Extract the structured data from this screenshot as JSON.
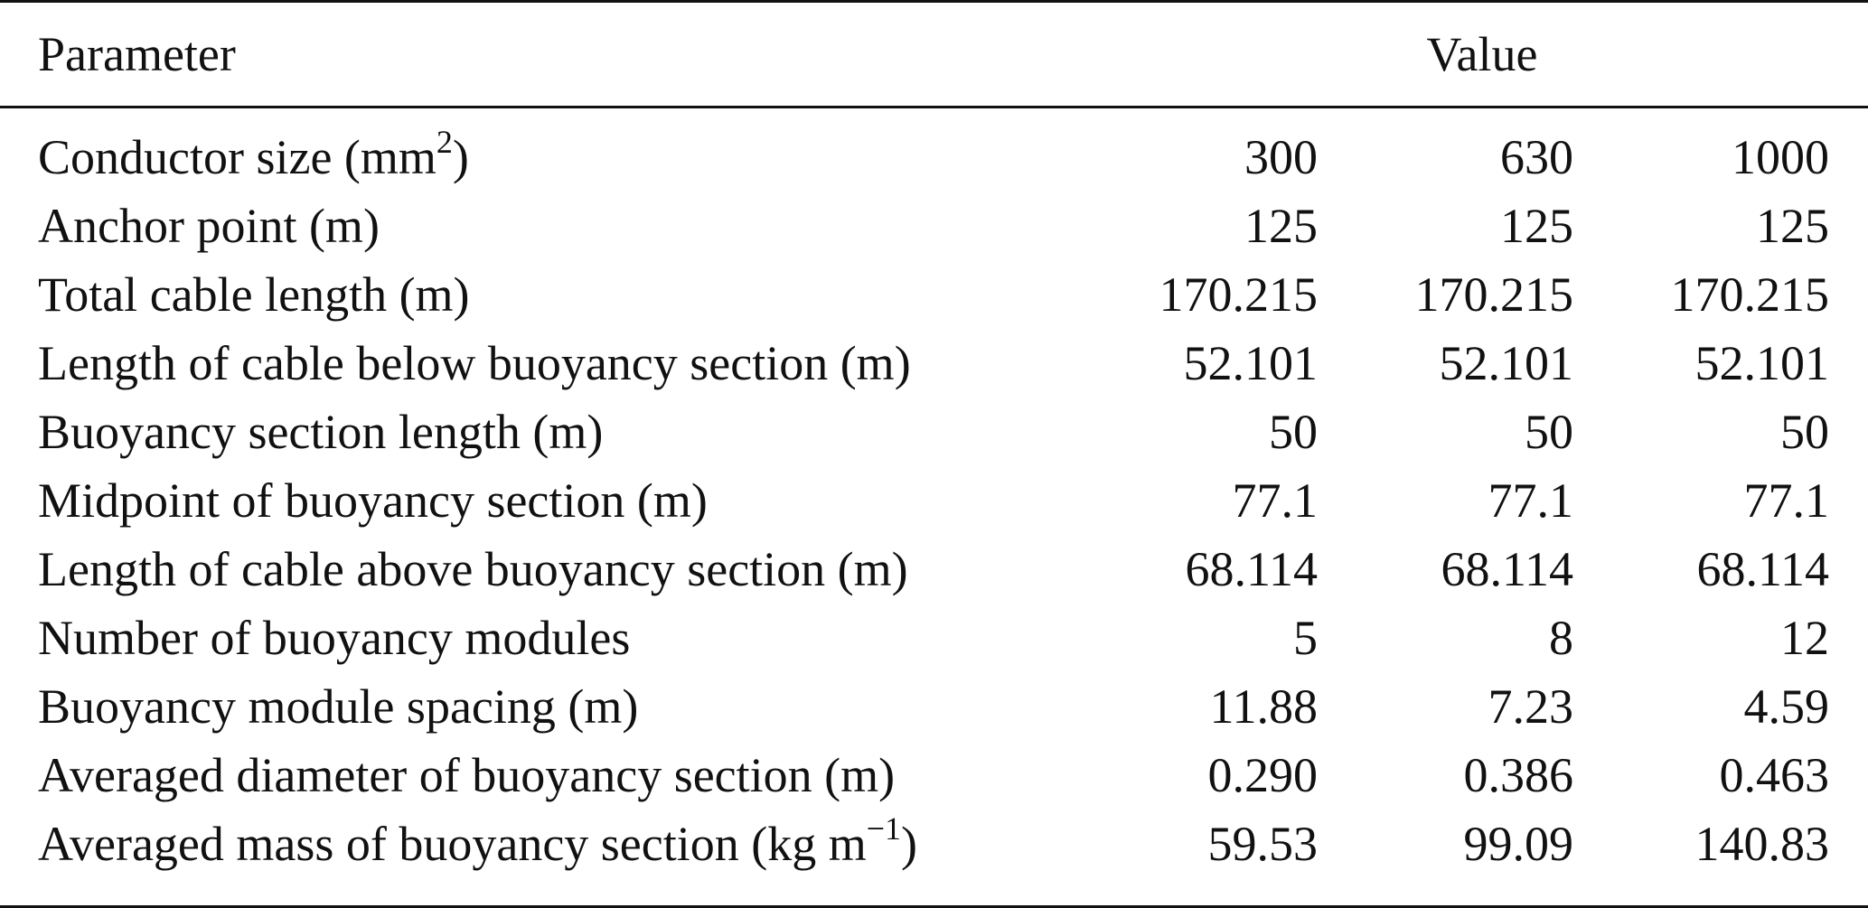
{
  "header": {
    "parameter": "Parameter",
    "value": "Value"
  },
  "rows": [
    {
      "label_before": "Conductor size (mm",
      "label_sup": "2",
      "label_after": ")",
      "values": [
        "300",
        "630",
        "1000"
      ]
    },
    {
      "label_before": "Anchor point (m)",
      "label_sup": "",
      "label_after": "",
      "values": [
        "125",
        "125",
        "125"
      ]
    },
    {
      "label_before": "Total cable length (m)",
      "label_sup": "",
      "label_after": "",
      "values": [
        "170.215",
        "170.215",
        "170.215"
      ]
    },
    {
      "label_before": "Length of cable below buoyancy section (m)",
      "label_sup": "",
      "label_after": "",
      "values": [
        "52.101",
        "52.101",
        "52.101"
      ]
    },
    {
      "label_before": "Buoyancy section length (m)",
      "label_sup": "",
      "label_after": "",
      "values": [
        "50",
        "50",
        "50"
      ]
    },
    {
      "label_before": "Midpoint of buoyancy section (m)",
      "label_sup": "",
      "label_after": "",
      "values": [
        "77.1",
        "77.1",
        "77.1"
      ]
    },
    {
      "label_before": "Length of cable above buoyancy section (m)",
      "label_sup": "",
      "label_after": "",
      "values": [
        "68.114",
        "68.114",
        "68.114"
      ]
    },
    {
      "label_before": "Number of buoyancy modules",
      "label_sup": "",
      "label_after": "",
      "values": [
        "5",
        "8",
        "12"
      ]
    },
    {
      "label_before": "Buoyancy module spacing (m)",
      "label_sup": "",
      "label_after": "",
      "values": [
        "11.88",
        "7.23",
        "4.59"
      ]
    },
    {
      "label_before": "Averaged diameter of buoyancy section (m)",
      "label_sup": "",
      "label_after": "",
      "values": [
        "0.290",
        "0.386",
        "0.463"
      ]
    },
    {
      "label_before": "Averaged mass of buoyancy section (kg m",
      "label_sup": "−1",
      "label_after": ")",
      "values": [
        "59.53",
        "99.09",
        "140.83"
      ]
    }
  ]
}
